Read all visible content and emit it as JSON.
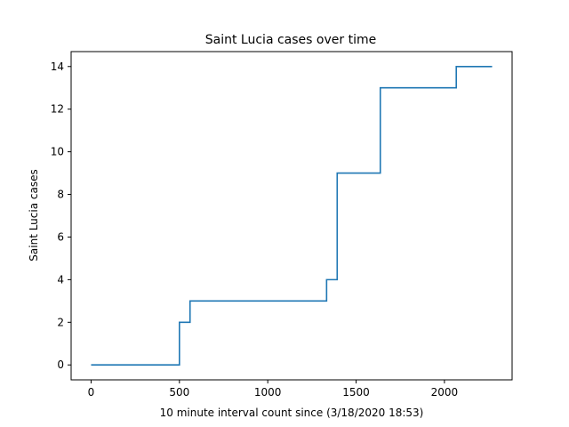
{
  "chart_data": {
    "type": "line",
    "title": "Saint Lucia cases over time",
    "xlabel": "10 minute interval count since (3/18/2020 18:53)",
    "ylabel": "Saint Lucia cases",
    "xlim": [
      -113,
      2383
    ],
    "ylim": [
      -0.7,
      14.7
    ],
    "xticks": [
      0,
      500,
      1000,
      1500,
      2000
    ],
    "yticks": [
      0,
      2,
      4,
      6,
      8,
      10,
      12,
      14
    ],
    "step": "post",
    "grid": false,
    "legend": "none",
    "series": [
      {
        "color": "#1f77b4",
        "x": [
          0,
          500,
          560,
          1333,
          1393,
          1637,
          2067,
          2270
        ],
        "y": [
          0,
          2,
          3,
          4,
          9,
          13,
          14,
          14
        ]
      }
    ]
  }
}
